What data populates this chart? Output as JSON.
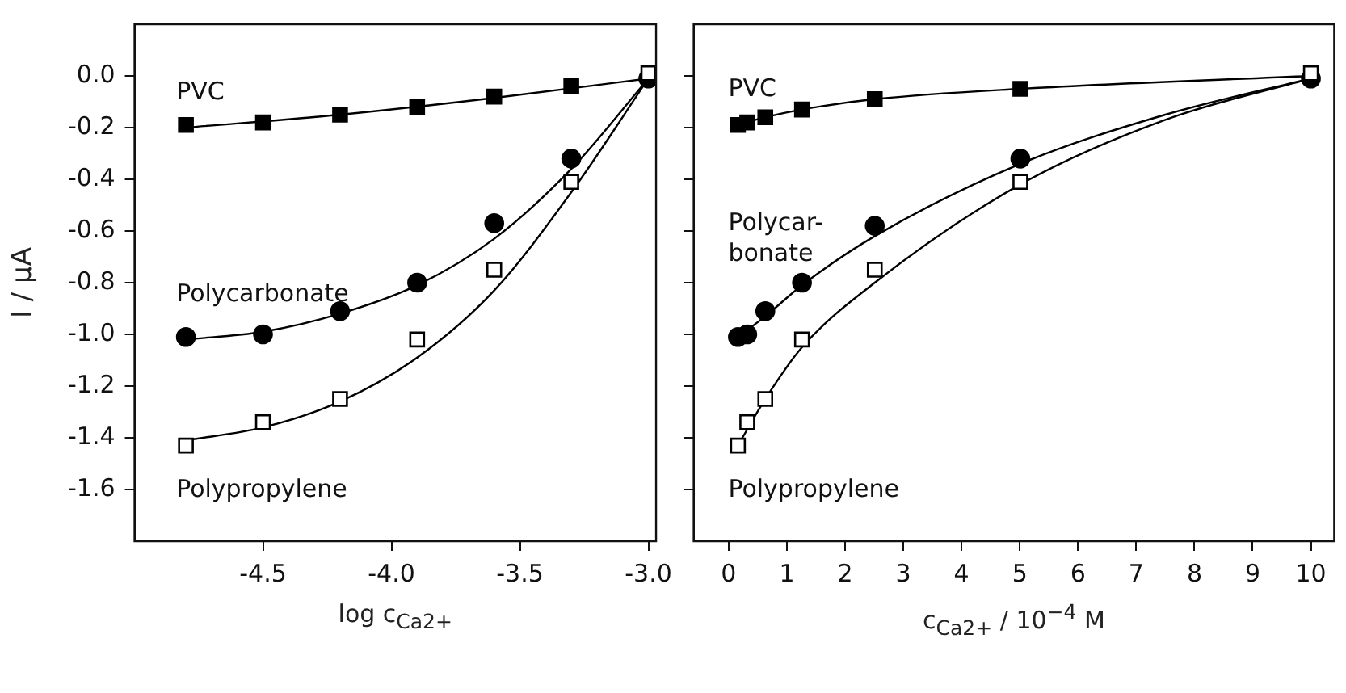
{
  "chart_data": [
    {
      "type": "scatter",
      "xlabel": "log c$_{Ca2+}$",
      "ylabel": "I / μA",
      "xlim": [
        -5.0,
        -2.97
      ],
      "ylim": [
        -1.8,
        0.2
      ],
      "xticks": [
        {
          "value": -4.5,
          "label": "-4.5"
        },
        {
          "value": -4.0,
          "label": "-4.0"
        },
        {
          "value": -3.5,
          "label": "-3.5"
        },
        {
          "value": -3.0,
          "label": "-3.0"
        }
      ],
      "yticks": [
        {
          "value": 0,
          "label": "0.0"
        },
        {
          "value": -0.2,
          "label": "-0.2"
        },
        {
          "value": -0.4,
          "label": "-0.4"
        },
        {
          "value": -0.6,
          "label": "-0.6"
        },
        {
          "value": -0.8,
          "label": "-0.8"
        },
        {
          "value": -1.0,
          "label": "-1.0"
        },
        {
          "value": -1.2,
          "label": "-1.2"
        },
        {
          "value": -1.4,
          "label": "-1.4"
        },
        {
          "value": -1.6,
          "label": "-1.6"
        }
      ],
      "grid": false,
      "legend": false,
      "series": [
        {
          "name": "PVC",
          "type": "scatter",
          "marker": "square",
          "color": "#000000",
          "x": [
            -4.8,
            -4.5,
            -4.2,
            -3.9,
            -3.6,
            -3.3
          ],
          "values": [
            -0.19,
            -0.18,
            -0.15,
            -0.12,
            -0.08,
            -0.04
          ]
        },
        {
          "name": "Polycarbonate",
          "type": "scatter",
          "marker": "circle",
          "color": "#000000",
          "x": [
            -4.8,
            -4.5,
            -4.2,
            -3.9,
            -3.6,
            -3.3,
            -3.0
          ],
          "values": [
            -1.01,
            -1.0,
            -0.91,
            -0.8,
            -0.57,
            -0.32,
            -0.01
          ]
        },
        {
          "name": "Polypropylene",
          "type": "scatter",
          "marker": "square",
          "color": "#ffffff",
          "x": [
            -4.8,
            -4.5,
            -4.2,
            -3.9,
            -3.6,
            -3.3,
            -3.0
          ],
          "values": [
            -1.43,
            -1.34,
            -1.25,
            -1.02,
            -0.75,
            -0.41,
            0.01
          ]
        },
        {
          "type": "line",
          "marker": "none",
          "color": "#000000",
          "x": [
            -4.8,
            -4.2,
            -3.6,
            -3.0
          ],
          "values": [
            -0.2,
            -0.15,
            -0.085,
            -0.01
          ]
        },
        {
          "type": "line",
          "marker": "none",
          "color": "#000000",
          "x": [
            -4.8,
            -4.5,
            -4.2,
            -3.9,
            -3.6,
            -3.3,
            -3.0
          ],
          "values": [
            -1.02,
            -0.99,
            -0.92,
            -0.81,
            -0.63,
            -0.36,
            -0.01
          ]
        },
        {
          "type": "line",
          "marker": "none",
          "color": "#000000",
          "x": [
            -4.8,
            -4.5,
            -4.2,
            -3.9,
            -3.6,
            -3.3,
            -3.0
          ],
          "values": [
            -1.41,
            -1.36,
            -1.26,
            -1.09,
            -0.83,
            -0.45,
            -0.01
          ]
        }
      ]
    },
    {
      "type": "scatter",
      "xlabel": "c$_{Ca2+}$ / 10$^{−4}$ M",
      "xlim": [
        -0.6,
        10.4
      ],
      "ylim": [
        -1.8,
        0.2
      ],
      "xticks": [
        0,
        1,
        2,
        3,
        4,
        5,
        6,
        7,
        8,
        9,
        10
      ],
      "yticks": [
        0,
        -0.2,
        -0.4,
        -0.6,
        -0.8,
        -1.0,
        -1.2,
        -1.4,
        -1.6
      ],
      "tick_labels": "x",
      "grid": false,
      "legend": false,
      "series": [
        {
          "name": "PVC",
          "type": "scatter",
          "marker": "square",
          "color": "#000000",
          "x": [
            0.16,
            0.32,
            0.63,
            1.26,
            2.51,
            5.01
          ],
          "values": [
            -0.19,
            -0.18,
            -0.16,
            -0.13,
            -0.09,
            -0.05
          ]
        },
        {
          "name": "Polycar-\nbonate",
          "type": "scatter",
          "marker": "circle",
          "color": "#000000",
          "x": [
            0.16,
            0.32,
            0.63,
            1.26,
            2.51,
            5.01,
            10
          ],
          "values": [
            -1.01,
            -1.0,
            -0.91,
            -0.8,
            -0.58,
            -0.32,
            -0.01
          ]
        },
        {
          "name": "Polypropylene",
          "type": "scatter",
          "marker": "square",
          "color": "#ffffff",
          "x": [
            0.16,
            0.32,
            0.63,
            1.26,
            2.51,
            5.01,
            10
          ],
          "values": [
            -1.43,
            -1.34,
            -1.25,
            -1.02,
            -0.75,
            -0.41,
            0.01
          ]
        },
        {
          "type": "line",
          "marker": "none",
          "color": "#000000",
          "x": [
            0.16,
            0.63,
            1.26,
            2.51,
            5.01,
            10
          ],
          "values": [
            -0.19,
            -0.16,
            -0.13,
            -0.09,
            -0.05,
            0.0
          ]
        },
        {
          "type": "line",
          "marker": "none",
          "color": "#000000",
          "x": [
            0.16,
            0.63,
            1.26,
            2.51,
            5.01,
            7.5,
            10
          ],
          "values": [
            -1.01,
            -0.93,
            -0.81,
            -0.62,
            -0.34,
            -0.15,
            -0.01
          ]
        },
        {
          "type": "line",
          "marker": "none",
          "color": "#000000",
          "x": [
            0.16,
            0.63,
            1.26,
            2.51,
            5.01,
            7.5,
            10
          ],
          "values": [
            -1.43,
            -1.25,
            -1.05,
            -0.8,
            -0.42,
            -0.17,
            -0.01
          ]
        }
      ]
    }
  ]
}
